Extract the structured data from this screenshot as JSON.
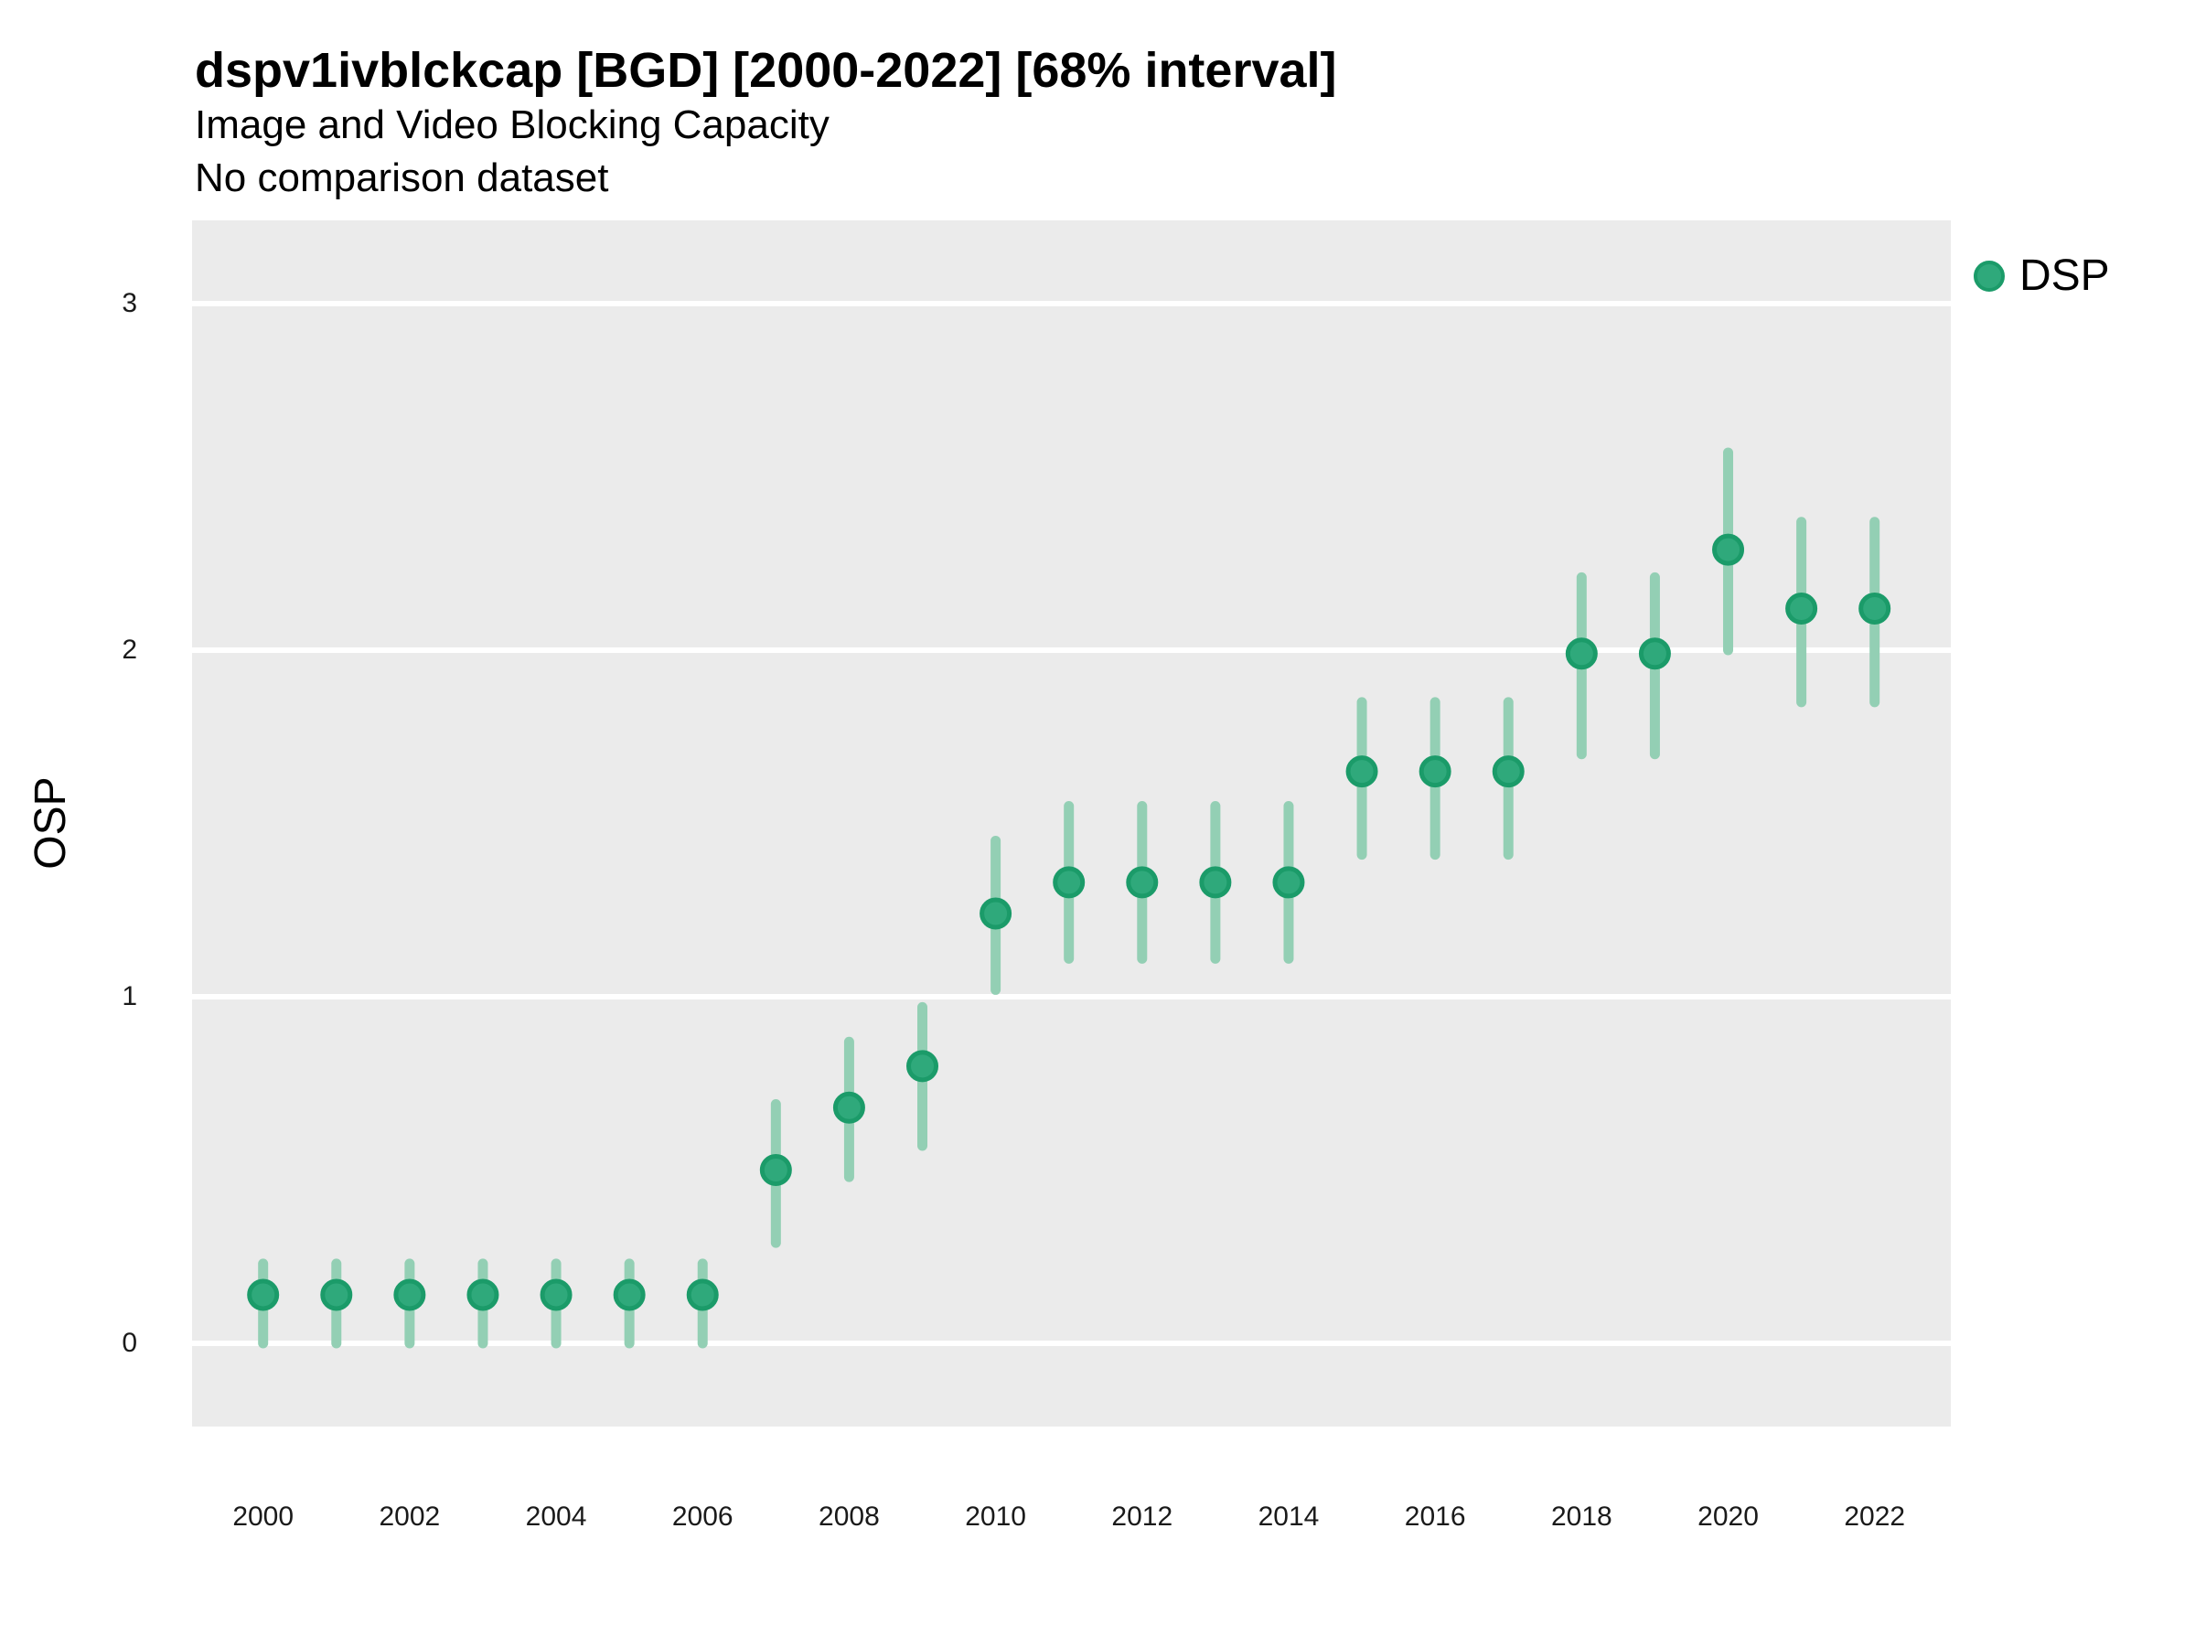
{
  "header": {
    "title": "dspv1ivblckcap [BGD] [2000-2022] [68% interval]",
    "subtitle": "Image and Video Blocking Capacity",
    "note": "No comparison dataset"
  },
  "legend": {
    "label": "DSP",
    "position": "right-top"
  },
  "colors": {
    "panel_background": "#EBEBEB",
    "gridline": "#FFFFFF",
    "point_fill": "#2FA97B",
    "point_stroke": "#1B9B69",
    "errorbar": "#93CFB4",
    "text": "#000000"
  },
  "chart_data": {
    "type": "scatter",
    "subtype": "pointrange",
    "title": "dspv1ivblckcap [BGD] [2000-2022] [68% interval]",
    "subtitle": "Image and Video Blocking Capacity",
    "note": "No comparison dataset",
    "interval": "68%",
    "xlabel": "",
    "ylabel": "OSP",
    "grid": "horizontal-major-only",
    "legend_position": "right-top",
    "x_ticks": [
      2000,
      2002,
      2004,
      2006,
      2008,
      2010,
      2012,
      2014,
      2016,
      2018,
      2020,
      2022
    ],
    "y_ticks": [
      0,
      1,
      2,
      3
    ],
    "xlim": [
      1999.03,
      2023.04
    ],
    "ylim": [
      -0.24,
      3.24
    ],
    "series": [
      {
        "name": "DSP",
        "x": [
          2000,
          2001,
          2002,
          2003,
          2004,
          2005,
          2006,
          2007,
          2008,
          2009,
          2010,
          2011,
          2012,
          2013,
          2014,
          2015,
          2016,
          2017,
          2018,
          2019,
          2020,
          2021,
          2022
        ],
        "y": [
          0.14,
          0.14,
          0.14,
          0.14,
          0.14,
          0.14,
          0.14,
          0.5,
          0.68,
          0.8,
          1.24,
          1.33,
          1.33,
          1.33,
          1.33,
          1.65,
          1.65,
          1.65,
          1.99,
          1.99,
          2.29,
          2.12,
          2.12
        ],
        "y_low": [
          0.0,
          0.0,
          0.0,
          0.0,
          0.0,
          0.0,
          0.0,
          0.29,
          0.48,
          0.57,
          1.02,
          1.11,
          1.11,
          1.11,
          1.11,
          1.41,
          1.41,
          1.41,
          1.7,
          1.7,
          2.0,
          1.85,
          1.85
        ],
        "y_high": [
          0.23,
          0.23,
          0.23,
          0.23,
          0.23,
          0.23,
          0.23,
          0.69,
          0.87,
          0.97,
          1.45,
          1.55,
          1.55,
          1.55,
          1.55,
          1.85,
          1.85,
          1.85,
          2.21,
          2.21,
          2.57,
          2.37,
          2.37
        ]
      }
    ]
  }
}
